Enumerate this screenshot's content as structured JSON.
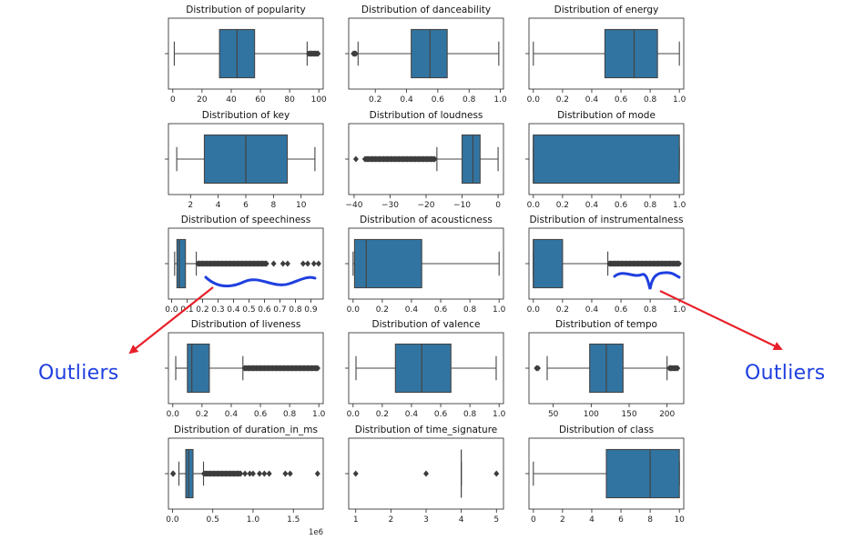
{
  "annotations": {
    "left_label": "Outliers",
    "right_label": "Outliers",
    "color": "#1f3fe0",
    "arrow_color": "#e8202a"
  },
  "style": {
    "box_color": "#3274a1",
    "line_color": "#444444"
  },
  "chart_data": [
    {
      "type": "box",
      "title": "Distribution of popularity",
      "xlim": [
        -3,
        103
      ],
      "ticks": [
        0,
        20,
        40,
        60,
        80,
        100
      ],
      "tick_labels": [
        "0",
        "20",
        "40",
        "60",
        "80",
        "100"
      ],
      "whislo": 1,
      "q1": 32,
      "med": 44,
      "q3": 56,
      "whishi": 92,
      "fliers_range": [
        93,
        100
      ]
    },
    {
      "type": "box",
      "title": "Distribution of danceability",
      "xlim": [
        0.03,
        1.02
      ],
      "ticks": [
        0.2,
        0.4,
        0.6,
        0.8,
        1.0
      ],
      "tick_labels": [
        "0.2",
        "0.4",
        "0.6",
        "0.8",
        "1.0"
      ],
      "whislo": 0.09,
      "q1": 0.43,
      "med": 0.55,
      "q3": 0.66,
      "whishi": 0.99,
      "fliers_range": [
        0.06,
        0.08
      ]
    },
    {
      "type": "box",
      "title": "Distribution of energy",
      "xlim": [
        -0.03,
        1.03
      ],
      "ticks": [
        0,
        0.2,
        0.4,
        0.6,
        0.8,
        1.0
      ],
      "tick_labels": [
        "0.0",
        "0.2",
        "0.4",
        "0.6",
        "0.8",
        "1.0"
      ],
      "whislo": 0.0,
      "q1": 0.49,
      "med": 0.69,
      "q3": 0.85,
      "whishi": 1.0
    },
    {
      "type": "box",
      "title": "Distribution of key",
      "xlim": [
        0.4,
        11.6
      ],
      "ticks": [
        2,
        4,
        6,
        8,
        10
      ],
      "tick_labels": [
        "2",
        "4",
        "6",
        "8",
        "10"
      ],
      "whislo": 1,
      "q1": 3,
      "med": 6,
      "q3": 9,
      "whishi": 11
    },
    {
      "type": "box",
      "title": "Distribution of loudness",
      "xlim": [
        -41.5,
        1.5
      ],
      "ticks": [
        -40,
        -30,
        -20,
        -10,
        0
      ],
      "tick_labels": [
        "−40",
        "−30",
        "−20",
        "−10",
        "0"
      ],
      "whislo": -17,
      "q1": -10,
      "med": -7,
      "q3": -5,
      "whishi": 0,
      "fliers_range": [
        -37,
        -17.5
      ],
      "flier_singles": [
        -39.5
      ]
    },
    {
      "type": "box",
      "title": "Distribution of mode",
      "xlim": [
        -0.03,
        1.03
      ],
      "ticks": [
        0,
        0.2,
        0.4,
        0.6,
        0.8,
        1.0
      ],
      "tick_labels": [
        "0.0",
        "0.2",
        "0.4",
        "0.6",
        "0.8",
        "1.0"
      ],
      "whislo": 0,
      "q1": 0,
      "med": 0,
      "q3": 1,
      "whishi": 1
    },
    {
      "type": "box",
      "title": "Distribution of speechiness",
      "xlim": [
        -0.02,
        0.98
      ],
      "ticks": [
        0,
        0.1,
        0.2,
        0.3,
        0.4,
        0.5,
        0.6,
        0.7,
        0.8,
        0.9
      ],
      "tick_labels": [
        "0.0",
        "0.1",
        "0.2",
        "0.3",
        "0.4",
        "0.5",
        "0.6",
        "0.7",
        "0.8",
        "0.9"
      ],
      "whislo": 0.02,
      "q1": 0.035,
      "med": 0.05,
      "q3": 0.09,
      "whishi": 0.16,
      "fliers_range": [
        0.17,
        0.62
      ],
      "flier_singles": [
        0.66,
        0.72,
        0.75,
        0.85,
        0.88,
        0.92,
        0.95
      ]
    },
    {
      "type": "box",
      "title": "Distribution of acousticness",
      "xlim": [
        -0.03,
        1.03
      ],
      "ticks": [
        0,
        0.2,
        0.4,
        0.6,
        0.8,
        1.0
      ],
      "tick_labels": [
        "0.0",
        "0.2",
        "0.4",
        "0.6",
        "0.8",
        "1.0"
      ],
      "whislo": 0,
      "q1": 0.01,
      "med": 0.09,
      "q3": 0.47,
      "whishi": 1.0
    },
    {
      "type": "box",
      "title": "Distribution of instrumentalness",
      "xlim": [
        -0.03,
        1.03
      ],
      "ticks": [
        0,
        0.2,
        0.4,
        0.6,
        0.8,
        1.0
      ],
      "tick_labels": [
        "0.0",
        "0.2",
        "0.4",
        "0.6",
        "0.8",
        "1.0"
      ],
      "whislo": 0,
      "q1": 0,
      "med": 0,
      "q3": 0.2,
      "whishi": 0.51,
      "fliers_range": [
        0.52,
        1.0
      ]
    },
    {
      "type": "box",
      "title": "Distribution of liveness",
      "xlim": [
        -0.03,
        1.03
      ],
      "ticks": [
        0,
        0.2,
        0.4,
        0.6,
        0.8,
        1.0
      ],
      "tick_labels": [
        "0.0",
        "0.2",
        "0.4",
        "0.6",
        "0.8",
        "1.0"
      ],
      "whislo": 0.02,
      "q1": 0.1,
      "med": 0.13,
      "q3": 0.25,
      "whishi": 0.48,
      "fliers_range": [
        0.49,
        1.0
      ]
    },
    {
      "type": "box",
      "title": "Distribution of valence",
      "xlim": [
        -0.03,
        1.03
      ],
      "ticks": [
        0,
        0.2,
        0.4,
        0.6,
        0.8,
        1.0
      ],
      "tick_labels": [
        "0.0",
        "0.2",
        "0.4",
        "0.6",
        "0.8",
        "1.0"
      ],
      "whislo": 0.02,
      "q1": 0.29,
      "med": 0.47,
      "q3": 0.67,
      "whishi": 0.98
    },
    {
      "type": "box",
      "title": "Distribution of tempo",
      "xlim": [
        18,
        222
      ],
      "ticks": [
        50,
        100,
        150,
        200
      ],
      "tick_labels": [
        "50",
        "100",
        "150",
        "200"
      ],
      "whislo": 42,
      "q1": 98,
      "med": 120,
      "q3": 142,
      "whishi": 200,
      "fliers_range": [
        203,
        214
      ],
      "flier_singles": [
        28,
        30
      ]
    },
    {
      "type": "box",
      "title": "Distribution of duration_in_ms",
      "xlim": [
        -50000,
        1870000
      ],
      "ticks": [
        0,
        500000,
        1000000,
        1500000
      ],
      "tick_labels": [
        "0.0",
        "0.5",
        "1.0",
        "1.5"
      ],
      "offset_label": "1e6",
      "whislo": 80000,
      "q1": 165000,
      "med": 200000,
      "q3": 255000,
      "whishi": 385000,
      "fliers_range": [
        390000,
        850000
      ],
      "flier_singles": [
        5000,
        10000,
        900000,
        960000,
        1000000,
        1080000,
        1140000,
        1200000,
        1400000,
        1460000,
        1800000
      ]
    },
    {
      "type": "box",
      "title": "Distribution of time_signature",
      "xlim": [
        0.8,
        5.2
      ],
      "ticks": [
        1,
        2,
        3,
        4,
        5
      ],
      "tick_labels": [
        "1",
        "2",
        "3",
        "4",
        "5"
      ],
      "whislo": 4,
      "q1": 4,
      "med": 4,
      "q3": 4,
      "whishi": 4,
      "flier_singles": [
        1,
        3,
        5
      ]
    },
    {
      "type": "box",
      "title": "Distribution of class",
      "xlim": [
        -0.3,
        10.3
      ],
      "ticks": [
        0,
        2,
        4,
        6,
        8,
        10
      ],
      "tick_labels": [
        "0",
        "2",
        "4",
        "6",
        "8",
        "10"
      ],
      "whislo": 0,
      "q1": 5,
      "med": 8,
      "q3": 10,
      "whishi": 10
    }
  ]
}
